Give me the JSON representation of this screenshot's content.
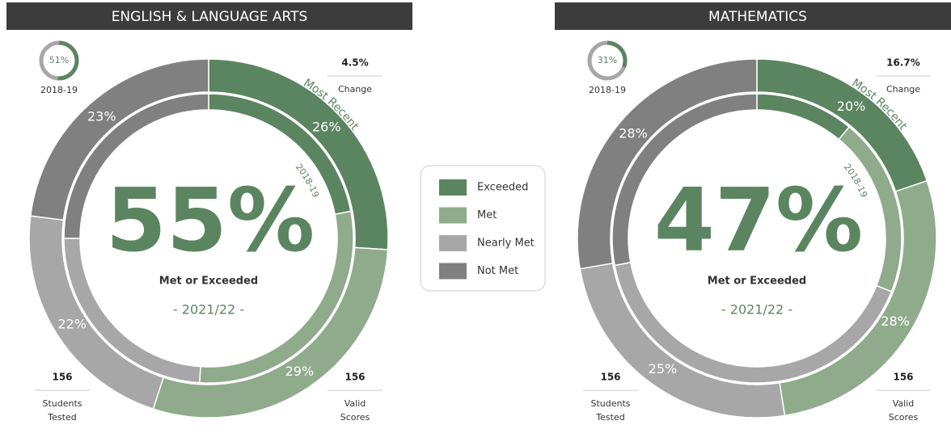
{
  "legend": [
    {
      "name": "Exceeded",
      "color": "#5b8560"
    },
    {
      "name": "Met",
      "color": "#8fab8c"
    },
    {
      "name": "Nearly Met",
      "color": "#a7a7a7"
    },
    {
      "name": "Not Met",
      "color": "#808080"
    }
  ],
  "panels": [
    {
      "title": "ENGLISH & LANGUAGE ARTS",
      "prior": {
        "value": 51,
        "label": "51%"
      },
      "prior_year": "2018-19",
      "change": "4.5%",
      "change_label": "Change",
      "ring_recent_label": "Most Recent",
      "ring_prior_label": "2018-19",
      "recent": [
        {
          "value": 26,
          "label": "26%"
        },
        {
          "value": 29,
          "label": "29%"
        },
        {
          "value": 22,
          "label": "22%"
        },
        {
          "value": 23,
          "label": "23%"
        }
      ],
      "prior_segments": [
        22,
        29,
        24,
        25
      ],
      "center_value": "55%",
      "center_label": "Met or Exceeded",
      "year": "- 2021/22 -",
      "students_tested": 156,
      "students_label": [
        "Students",
        "Tested"
      ],
      "valid_scores": 156,
      "valid_label": [
        "Valid",
        "Scores"
      ]
    },
    {
      "title": "MATHEMATICS",
      "prior": {
        "value": 31,
        "label": "31%"
      },
      "prior_year": "2018-19",
      "change": "16.7%",
      "change_label": "Change",
      "ring_recent_label": "Most Recent",
      "ring_prior_label": "2018-19",
      "recent": [
        {
          "value": 20,
          "label": "20%"
        },
        {
          "value": 28,
          "label": "28%"
        },
        {
          "value": 25,
          "label": "25%"
        },
        {
          "value": 28,
          "label": "28%"
        }
      ],
      "prior_segments": [
        11,
        20,
        41,
        28
      ],
      "center_value": "47%",
      "center_label": "Met or Exceeded",
      "year": "- 2021/22 -",
      "students_tested": 156,
      "students_label": [
        "Students",
        "Tested"
      ],
      "valid_scores": 156,
      "valid_label": [
        "Valid",
        "Scores"
      ]
    }
  ]
}
